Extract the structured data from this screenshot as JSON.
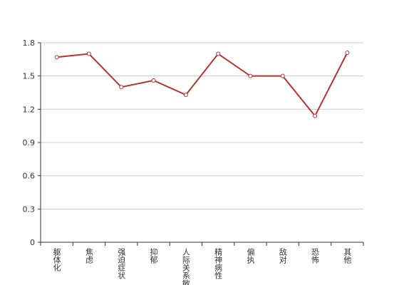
{
  "chart_data": {
    "type": "line",
    "categories": [
      "躯体化",
      "焦虑",
      "强迫症状",
      "抑郁",
      "人际关系敏感",
      "精神病性",
      "偏执",
      "敌对",
      "恐怖",
      "其他"
    ],
    "values": [
      1.67,
      1.7,
      1.4,
      1.46,
      1.33,
      1.7,
      1.5,
      1.5,
      1.14,
      1.71
    ],
    "color": "#b83232",
    "ylim": [
      0,
      1.8
    ],
    "yticks": [
      0,
      0.3,
      0.6,
      0.9,
      1.2,
      1.5,
      1.8
    ],
    "grid": true
  }
}
